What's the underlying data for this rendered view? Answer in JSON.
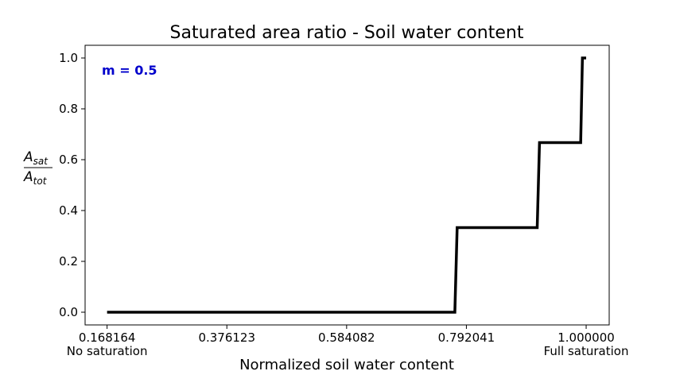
{
  "chart_data": {
    "type": "line",
    "title": "Saturated area ratio - Soil water content",
    "xlabel": "Normalized soil water content",
    "ylabel": {
      "numerator_base": "A",
      "numerator_sub": "sat",
      "denominator_base": "A",
      "denominator_sub": "tot"
    },
    "xlim": [
      0.13,
      1.04
    ],
    "ylim": [
      -0.05,
      1.05
    ],
    "x_ticks": [
      0.168164,
      0.376123,
      0.584082,
      0.792041,
      1.0
    ],
    "x_tick_labels": [
      "0.168164",
      "0.376123",
      "0.584082",
      "0.792041",
      "1.000000"
    ],
    "x_tick_sublabels": [
      "No saturation",
      "",
      "",
      "",
      "Full saturation"
    ],
    "y_ticks": [
      0.0,
      0.2,
      0.4,
      0.6,
      0.8,
      1.0
    ],
    "y_tick_labels": [
      "0.0",
      "0.2",
      "0.4",
      "0.6",
      "0.8",
      "1.0"
    ],
    "grid": false,
    "annotation": {
      "text": "m = 0.5",
      "color": "#0000cc",
      "position": "top-left"
    },
    "series": [
      {
        "color": "#000000",
        "x": [
          0.168164,
          0.772,
          0.776,
          0.915,
          0.919,
          0.9905,
          0.9935,
          1.0
        ],
        "y": [
          0.0,
          0.0,
          0.333,
          0.333,
          0.667,
          0.667,
          1.0,
          1.0
        ]
      }
    ]
  }
}
